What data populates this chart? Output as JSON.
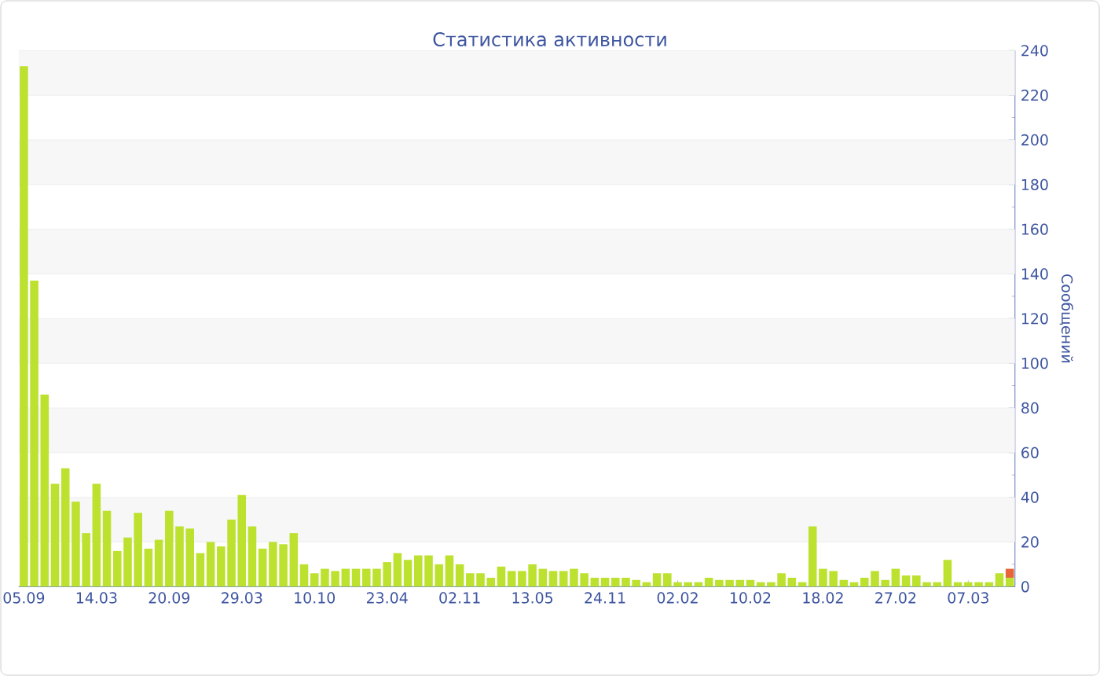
{
  "chart_data": {
    "type": "bar",
    "title": "Статистика активности",
    "ylabel": "Сообщений",
    "categories": [
      "05.09",
      null,
      null,
      null,
      null,
      null,
      null,
      "14.03",
      null,
      null,
      null,
      null,
      null,
      null,
      "20.09",
      null,
      null,
      null,
      null,
      null,
      null,
      "29.03",
      null,
      null,
      null,
      null,
      null,
      null,
      "10.10",
      null,
      null,
      null,
      null,
      null,
      null,
      "23.04",
      null,
      null,
      null,
      null,
      null,
      null,
      "02.11",
      null,
      null,
      null,
      null,
      null,
      null,
      "13.05",
      null,
      null,
      null,
      null,
      null,
      null,
      "24.11",
      null,
      null,
      null,
      null,
      null,
      null,
      "02.02",
      null,
      null,
      null,
      null,
      null,
      null,
      "10.02",
      null,
      null,
      null,
      null,
      null,
      null,
      "18.02",
      null,
      null,
      null,
      null,
      null,
      null,
      "27.02",
      null,
      null,
      null,
      null,
      null,
      null,
      "07.03",
      null,
      null,
      null,
      null
    ],
    "stacked": true,
    "series": [
      {
        "color": "#bde12f",
        "values": [
          233,
          137,
          86,
          46,
          53,
          38,
          24,
          46,
          34,
          16,
          22,
          33,
          17,
          21,
          34,
          27,
          26,
          15,
          20,
          18,
          30,
          41,
          27,
          17,
          20,
          19,
          24,
          10,
          6,
          8,
          7,
          8,
          8,
          8,
          8,
          11,
          15,
          12,
          14,
          14,
          10,
          14,
          10,
          6,
          6,
          4,
          9,
          7,
          7,
          10,
          8,
          7,
          7,
          8,
          6,
          4,
          4,
          4,
          4,
          3,
          2,
          6,
          6,
          2,
          2,
          2,
          4,
          3,
          3,
          3,
          3,
          2,
          2,
          6,
          4,
          2,
          27,
          8,
          7,
          3,
          2,
          4,
          7,
          3,
          8,
          5,
          5,
          2,
          2,
          12,
          2,
          2,
          2,
          2,
          6,
          4
        ]
      },
      {
        "color": "#e8643a",
        "values": [
          null,
          null,
          null,
          null,
          null,
          null,
          null,
          null,
          null,
          null,
          null,
          null,
          null,
          null,
          null,
          null,
          null,
          null,
          null,
          null,
          null,
          null,
          null,
          null,
          null,
          null,
          null,
          null,
          null,
          null,
          null,
          null,
          null,
          null,
          null,
          null,
          null,
          null,
          null,
          null,
          null,
          null,
          null,
          null,
          null,
          null,
          null,
          null,
          null,
          null,
          null,
          null,
          null,
          null,
          null,
          null,
          null,
          null,
          null,
          null,
          null,
          null,
          null,
          null,
          null,
          null,
          null,
          null,
          null,
          null,
          null,
          null,
          null,
          null,
          null,
          null,
          null,
          null,
          null,
          null,
          null,
          null,
          null,
          null,
          null,
          null,
          null,
          null,
          null,
          null,
          null,
          null,
          null,
          null,
          null,
          4
        ]
      }
    ],
    "ylim": [
      0,
      240
    ],
    "yticks": [
      0,
      20,
      40,
      60,
      80,
      100,
      120,
      140,
      160,
      180,
      200,
      220,
      240
    ],
    "grid": "y"
  }
}
